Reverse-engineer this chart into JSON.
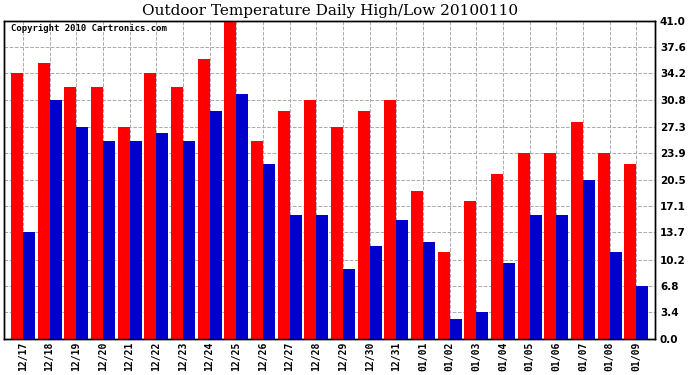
{
  "title": "Outdoor Temperature Daily High/Low 20100110",
  "copyright": "Copyright 2010 Cartronics.com",
  "dates": [
    "12/17",
    "12/18",
    "12/19",
    "12/20",
    "12/21",
    "12/22",
    "12/23",
    "12/24",
    "12/25",
    "12/26",
    "12/27",
    "12/28",
    "12/29",
    "12/30",
    "12/31",
    "01/01",
    "01/02",
    "01/03",
    "01/04",
    "01/05",
    "01/06",
    "01/07",
    "01/08",
    "01/09"
  ],
  "highs": [
    34.2,
    35.6,
    32.5,
    32.5,
    27.3,
    34.2,
    32.5,
    36.0,
    41.0,
    25.5,
    29.4,
    30.8,
    27.3,
    29.4,
    30.8,
    19.0,
    11.2,
    17.8,
    21.2,
    23.9,
    23.9,
    28.0,
    23.9,
    22.5
  ],
  "lows": [
    13.7,
    30.8,
    27.3,
    25.5,
    25.5,
    26.5,
    25.5,
    29.4,
    31.5,
    22.5,
    15.9,
    15.9,
    9.0,
    12.0,
    15.3,
    12.5,
    2.5,
    3.4,
    9.8,
    15.9,
    15.9,
    20.5,
    11.2,
    6.8
  ],
  "ylim": [
    0,
    41.0
  ],
  "yticks": [
    0.0,
    3.4,
    6.8,
    10.2,
    13.7,
    17.1,
    20.5,
    23.9,
    27.3,
    30.8,
    34.2,
    37.6,
    41.0
  ],
  "high_color": "#ff0000",
  "low_color": "#0000cc",
  "bg_color": "#ffffff",
  "grid_color": "#aaaaaa",
  "title_fontsize": 11,
  "bar_width": 0.45
}
